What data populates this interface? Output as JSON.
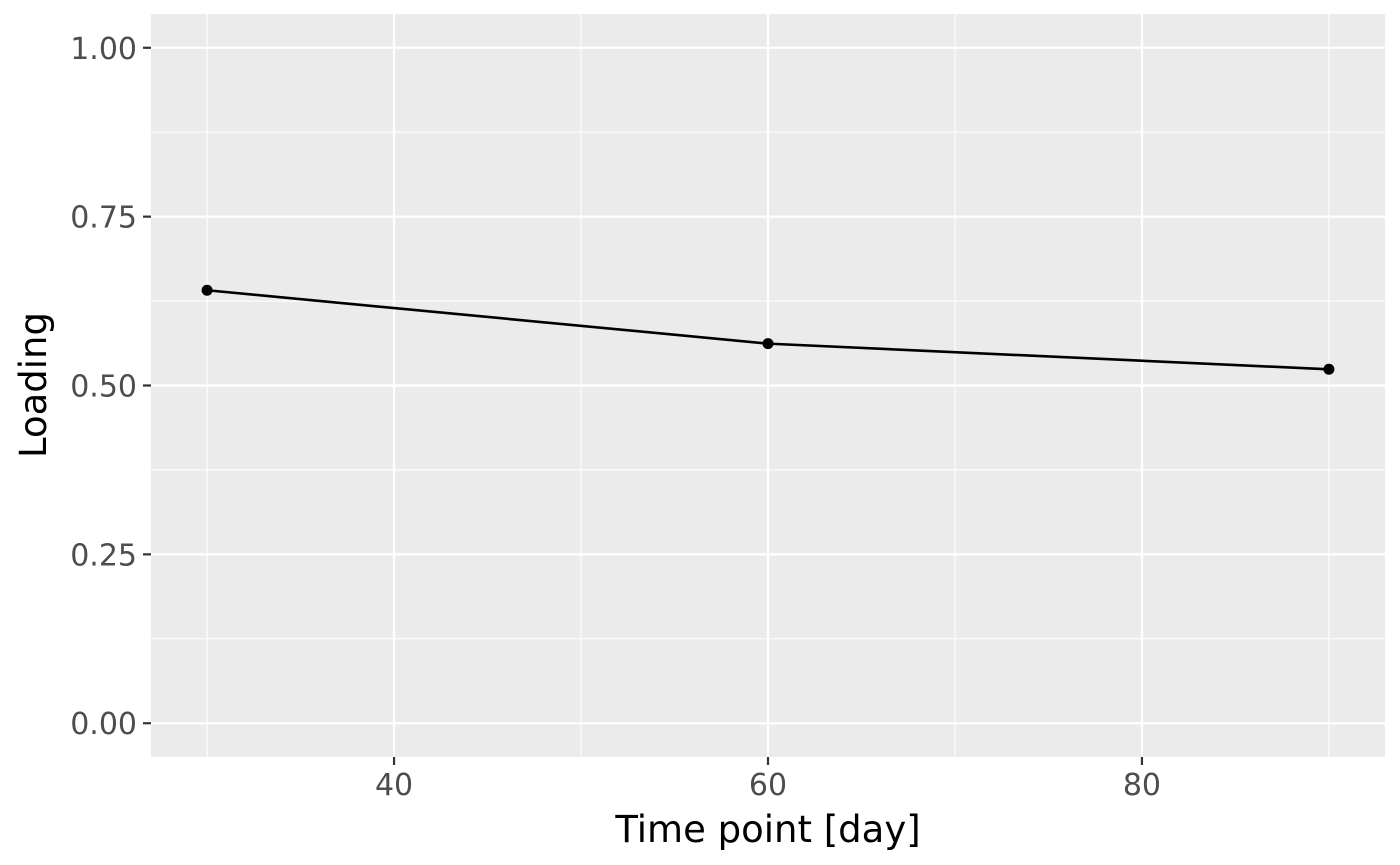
{
  "chart_data": {
    "type": "line",
    "xlabel": "Time point [day]",
    "ylabel": "Loading",
    "x_ticks": [
      40,
      60,
      80
    ],
    "x_tick_labels": [
      "40",
      "60",
      "80"
    ],
    "y_ticks": [
      0,
      0.25,
      0.5,
      0.75,
      1
    ],
    "y_tick_labels": [
      "0.00",
      "0.25",
      "0.50",
      "0.75",
      "1.00"
    ],
    "xlim": [
      27,
      93
    ],
    "ylim": [
      -0.05,
      1.05
    ],
    "grid": true,
    "series": [
      {
        "x": [
          30,
          60,
          90
        ],
        "y": [
          0.641,
          0.562,
          0.524
        ]
      }
    ],
    "colors": {
      "panel_background": "#ebebeb",
      "grid": "#ffffff",
      "line": "#000000",
      "tick_text": "#4d4d4d",
      "axis_text": "#000000"
    }
  }
}
